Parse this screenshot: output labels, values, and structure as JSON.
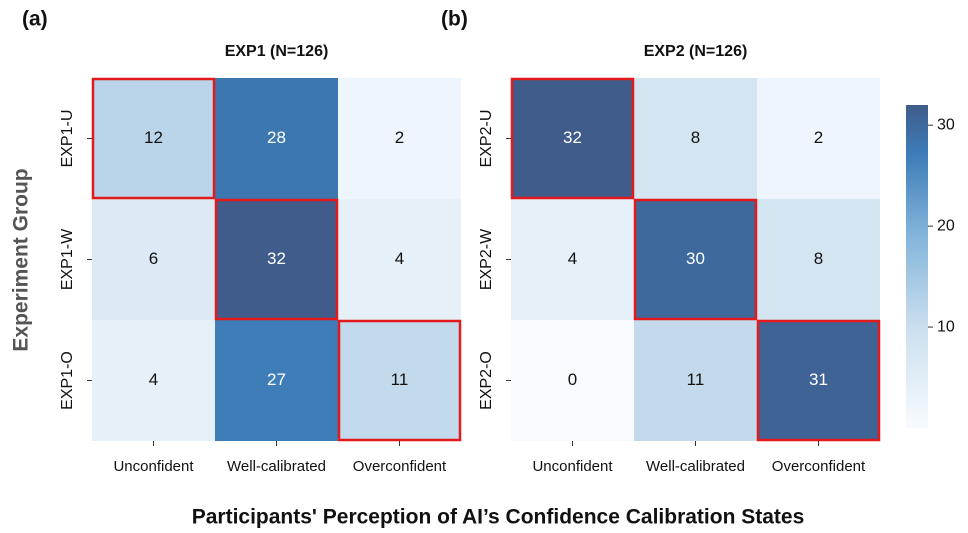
{
  "chart_data": [
    {
      "type": "heatmap",
      "panel": "(a)",
      "title": "EXP1 (N=126)",
      "x_categories": [
        "Unconfident",
        "Well-calibrated",
        "Overconfident"
      ],
      "y_categories": [
        "EXP1-U",
        "EXP1-W",
        "EXP1-O"
      ],
      "values": [
        [
          12,
          28,
          2
        ],
        [
          6,
          32,
          4
        ],
        [
          4,
          27,
          11
        ]
      ],
      "highlighted_cells": [
        [
          0,
          0
        ],
        [
          1,
          1
        ],
        [
          2,
          2
        ]
      ],
      "highlight_color": "#e3191c"
    },
    {
      "type": "heatmap",
      "panel": "(b)",
      "title": "EXP2 (N=126)",
      "x_categories": [
        "Unconfident",
        "Well-calibrated",
        "Overconfident"
      ],
      "y_categories": [
        "EXP2-U",
        "EXP2-W",
        "EXP2-O"
      ],
      "values": [
        [
          32,
          8,
          2
        ],
        [
          4,
          30,
          8
        ],
        [
          0,
          11,
          31
        ]
      ],
      "highlighted_cells": [
        [
          0,
          0
        ],
        [
          1,
          1
        ],
        [
          2,
          2
        ]
      ],
      "highlight_color": "#e3191c"
    }
  ],
  "ylabel": "Experiment Group",
  "xlabel": "Participants' Perception of AI’s Confidence Calibration States",
  "colorbar": {
    "lim": [
      0,
      32
    ],
    "ticks": [
      10,
      20,
      30
    ]
  }
}
